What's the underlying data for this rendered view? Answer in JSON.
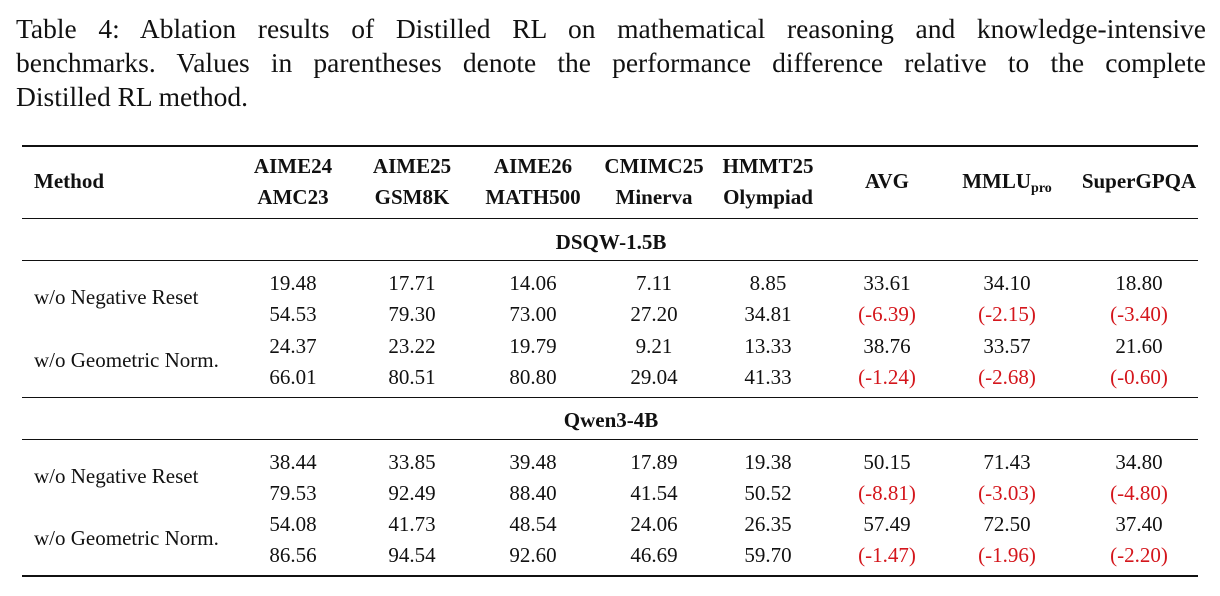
{
  "caption": {
    "line1": "Table 4:  Ablation results of Distilled RL on mathematical reasoning and knowledge-intensive",
    "line2": "benchmarks.  Values in parentheses denote the performance difference relative to the complete",
    "line3": "Distilled RL method."
  },
  "header": {
    "method": "Method",
    "col1_top": "AIME24",
    "col1_bottom": "AMC23",
    "col2_top": "AIME25",
    "col2_bottom": "GSM8K",
    "col3_top": "AIME26",
    "col3_bottom": "MATH500",
    "col4_top": "CMIMC25",
    "col4_bottom": "Minerva",
    "col5_top": "HMMT25",
    "col5_bottom": "Olympiad",
    "avg": "AVG",
    "mmlu_base": "MMLU",
    "mmlu_sub": "pro",
    "supergpqa": "SuperGPQA"
  },
  "groups": [
    {
      "title": "DSQW-1.5B",
      "rows": [
        {
          "method": "w/o Negative Reset",
          "top": [
            "19.48",
            "17.71",
            "14.06",
            "7.11",
            "8.85",
            "33.61",
            "34.10",
            "18.80"
          ],
          "bottom": [
            "54.53",
            "79.30",
            "73.00",
            "27.20",
            "34.81"
          ],
          "deltas": [
            "(-6.39)",
            "(-2.15)",
            "(-3.40)"
          ]
        },
        {
          "method": "w/o Geometric Norm.",
          "top": [
            "24.37",
            "23.22",
            "19.79",
            "9.21",
            "13.33",
            "38.76",
            "33.57",
            "21.60"
          ],
          "bottom": [
            "66.01",
            "80.51",
            "80.80",
            "29.04",
            "41.33"
          ],
          "deltas": [
            "(-1.24)",
            "(-2.68)",
            "(-0.60)"
          ]
        }
      ]
    },
    {
      "title": "Qwen3-4B",
      "rows": [
        {
          "method": "w/o Negative Reset",
          "top": [
            "38.44",
            "33.85",
            "39.48",
            "17.89",
            "19.38",
            "50.15",
            "71.43",
            "34.80"
          ],
          "bottom": [
            "79.53",
            "92.49",
            "88.40",
            "41.54",
            "50.52"
          ],
          "deltas": [
            "(-8.81)",
            "(-3.03)",
            "(-4.80)"
          ]
        },
        {
          "method": "w/o Geometric Norm.",
          "top": [
            "54.08",
            "41.73",
            "48.54",
            "24.06",
            "26.35",
            "57.49",
            "72.50",
            "37.40"
          ],
          "bottom": [
            "86.56",
            "94.54",
            "92.60",
            "46.69",
            "59.70"
          ],
          "deltas": [
            "(-1.47)",
            "(-1.96)",
            "(-2.20)"
          ]
        }
      ]
    }
  ],
  "colors": {
    "delta": "#d4161c",
    "rule": "#111111"
  }
}
